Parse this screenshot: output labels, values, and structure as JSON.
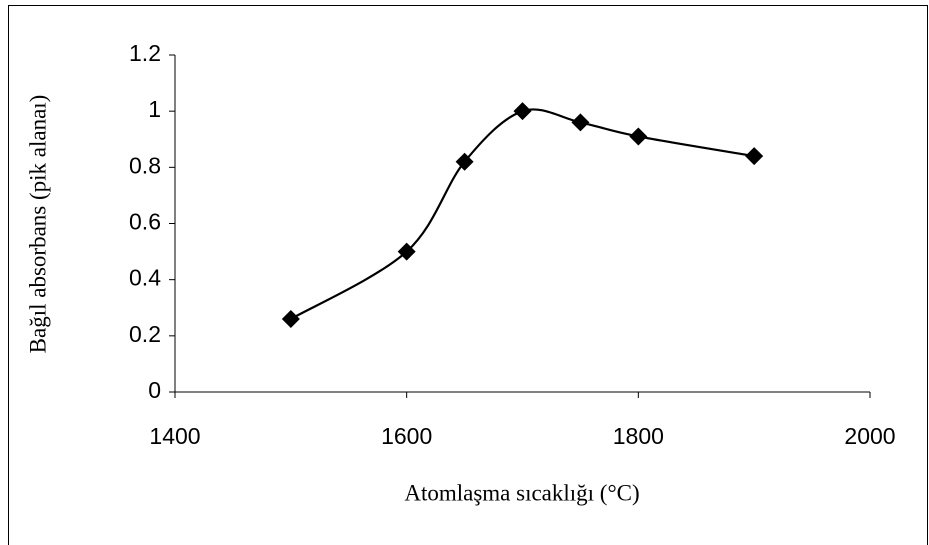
{
  "chart_data": {
    "type": "line",
    "x_label": "Atomlaşma sıcaklığı (°C)",
    "y_label": "Bağıl absorbans (pik alanaı)",
    "x": [
      1500,
      1600,
      1650,
      1700,
      1750,
      1800,
      1900
    ],
    "series": [
      {
        "name": "Bağıl absorbans",
        "color": "#000000",
        "values": [
          0.26,
          0.5,
          0.82,
          1.0,
          0.96,
          0.91,
          0.84
        ]
      }
    ],
    "xlim": [
      1400,
      2000
    ],
    "xticks": [
      1400,
      1600,
      1800,
      2000
    ],
    "ylim": [
      0,
      1.2
    ],
    "yticks": [
      0,
      0.2,
      0.4,
      0.6,
      0.8,
      1,
      1.2
    ],
    "smooth": true,
    "marker": "diamond",
    "grid": false
  }
}
